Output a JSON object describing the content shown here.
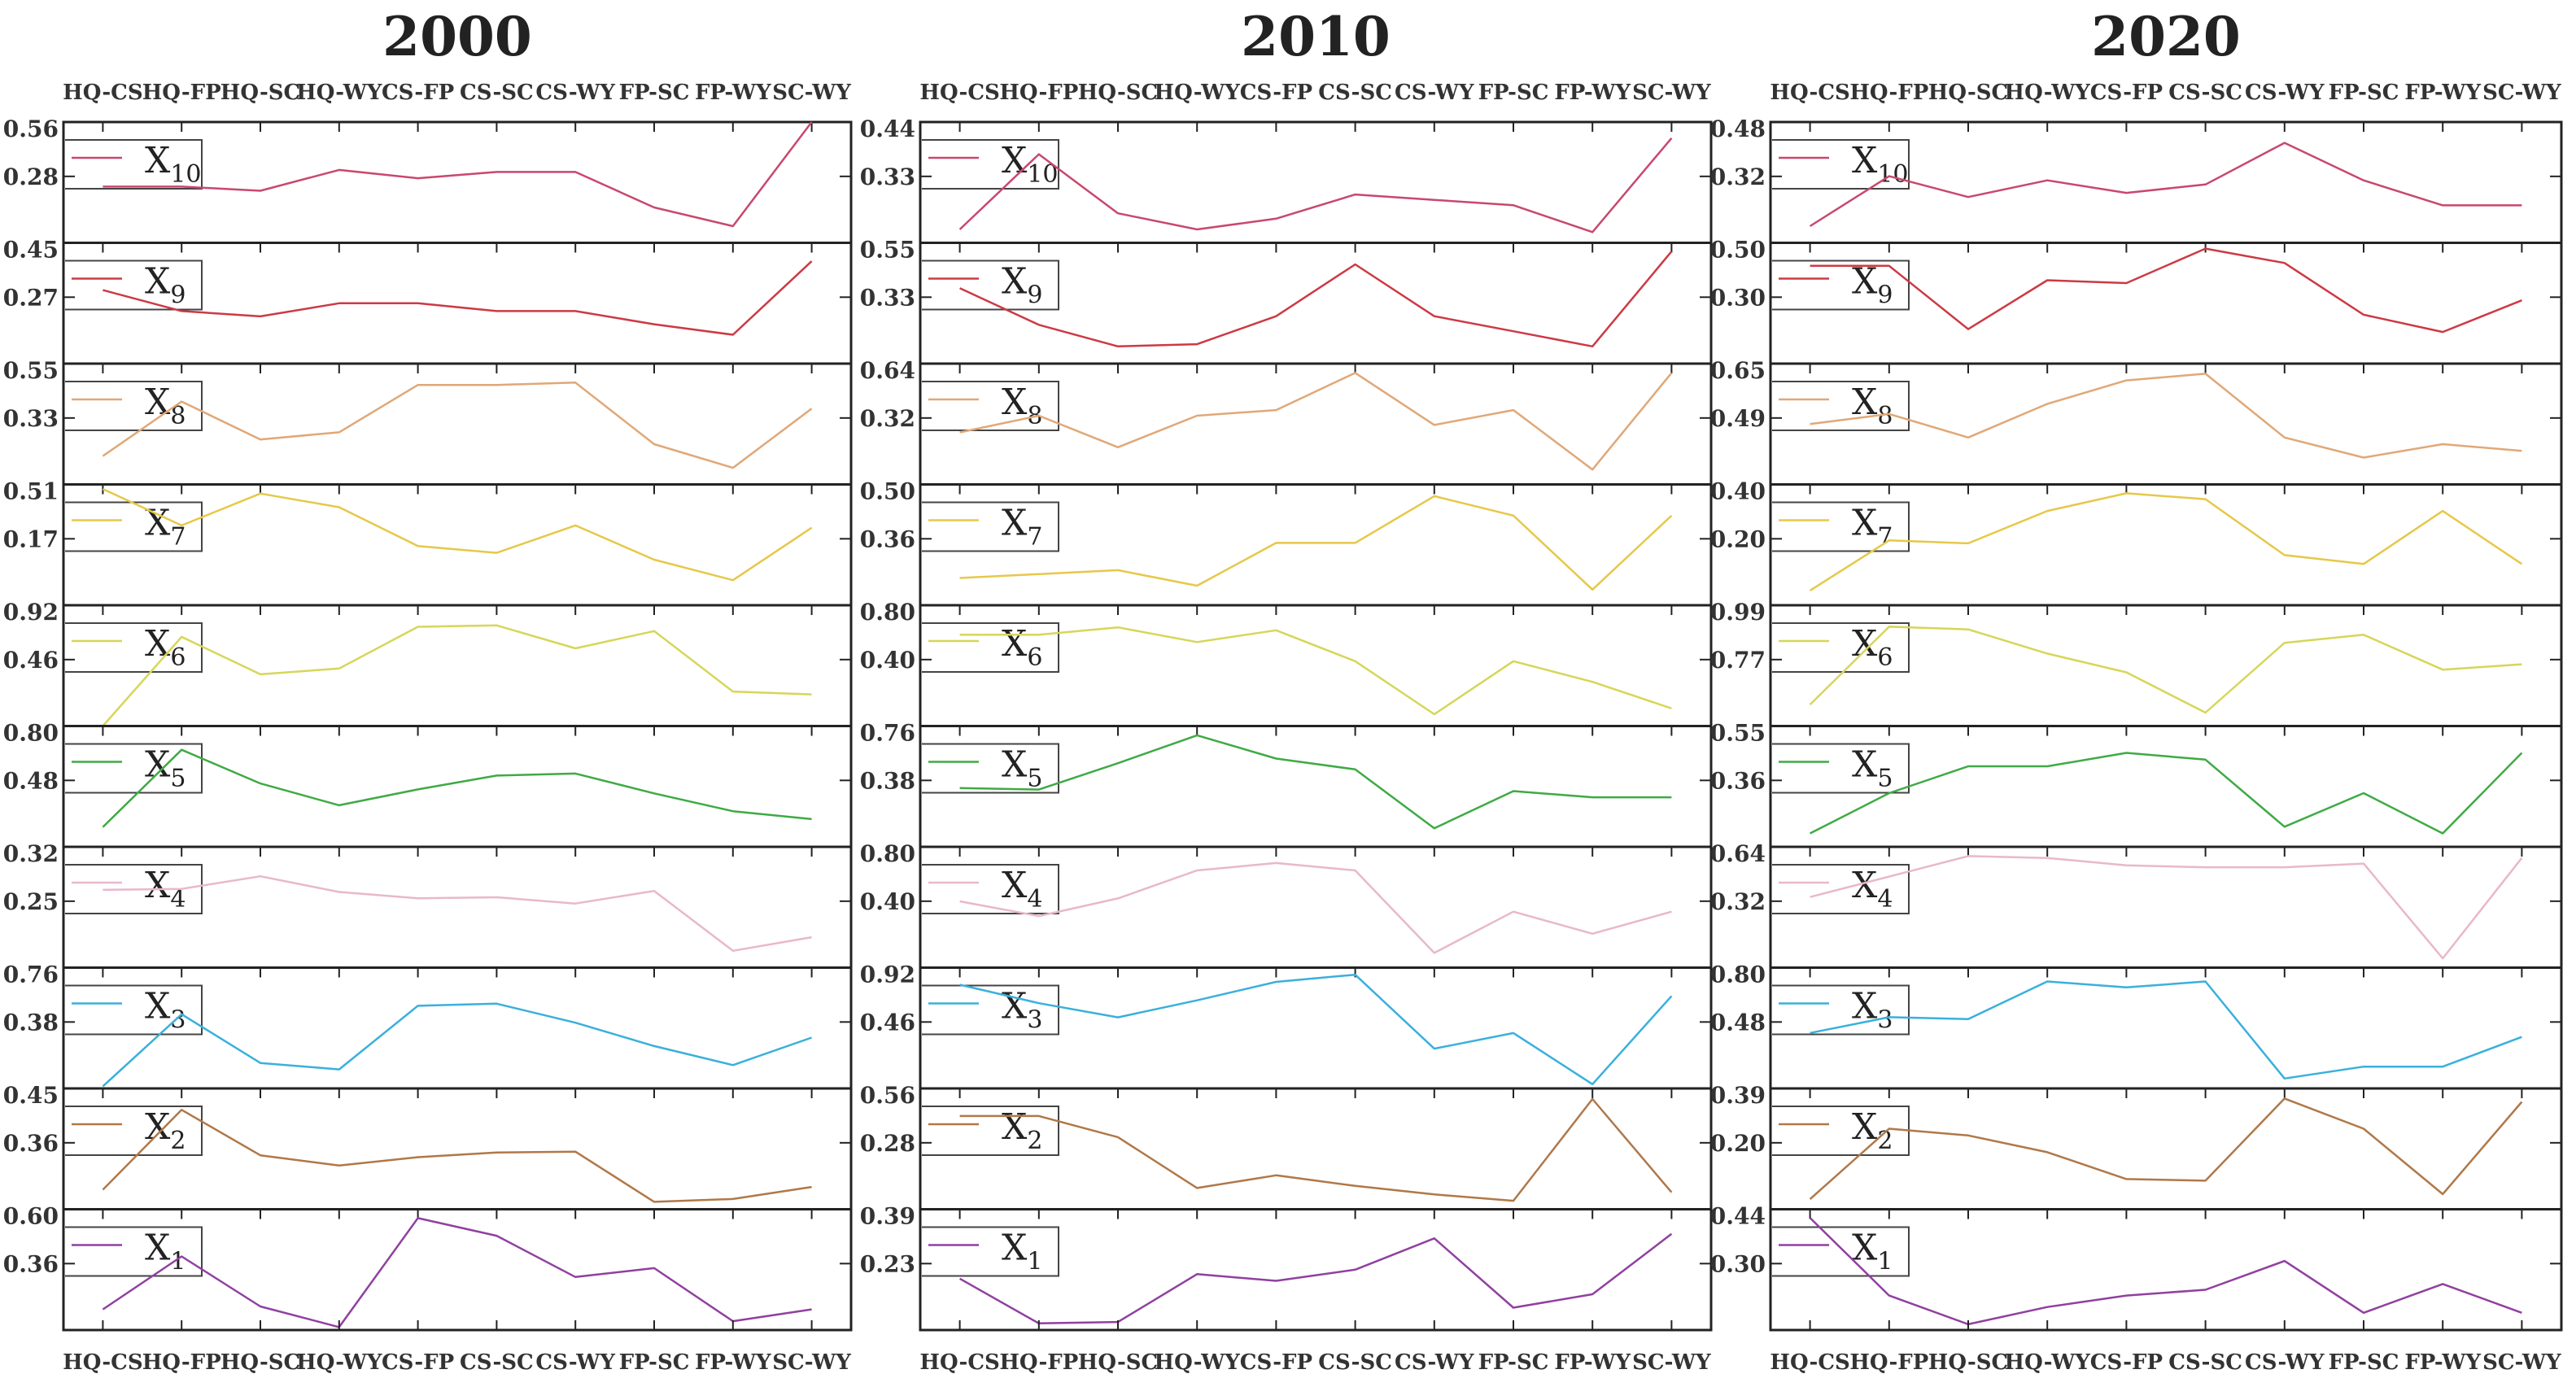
{
  "chart_data": {
    "type": "line",
    "categories": [
      "HQ-CS",
      "HQ-FP",
      "HQ-SC",
      "HQ-WY",
      "CS-FP",
      "CS-SC",
      "CS-WY",
      "FP-SC",
      "FP-WY",
      "SC-WY"
    ],
    "series_colors": {
      "X10": "#c8486e",
      "X9": "#cc3a44",
      "X8": "#e0a878",
      "X7": "#e6c84a",
      "X6": "#d6d65a",
      "X5": "#3faa45",
      "X4": "#e8b8cc",
      "X3": "#3ab0dc",
      "X2": "#b07848",
      "X1": "#9040a0"
    },
    "legend_labels": {
      "X10": {
        "main": "X",
        "sub": "10"
      },
      "X9": {
        "main": "X",
        "sub": "9"
      },
      "X8": {
        "main": "X",
        "sub": "8"
      },
      "X7": {
        "main": "X",
        "sub": "7"
      },
      "X6": {
        "main": "X",
        "sub": "6"
      },
      "X5": {
        "main": "X",
        "sub": "5"
      },
      "X4": {
        "main": "X",
        "sub": "4"
      },
      "X3": {
        "main": "X",
        "sub": "3"
      },
      "X2": {
        "main": "X",
        "sub": "2"
      },
      "X1": {
        "main": "X",
        "sub": "1"
      }
    },
    "panels": [
      {
        "title": "2000",
        "series": {
          "X10": {
            "ticks": [
              "0.56",
              "0.28"
            ],
            "ylim": [
              0.0,
              0.58
            ],
            "values": [
              0.27,
              0.27,
              0.25,
              0.35,
              0.31,
              0.34,
              0.34,
              0.17,
              0.08,
              0.58
            ]
          },
          "X9": {
            "ticks": [
              "0.45",
              "0.27"
            ],
            "ylim": [
              0.0,
              0.46
            ],
            "values": [
              0.28,
              0.2,
              0.18,
              0.23,
              0.23,
              0.2,
              0.2,
              0.15,
              0.11,
              0.39
            ]
          },
          "X8": {
            "ticks": [
              "0.55",
              "0.33"
            ],
            "ylim": [
              0.05,
              0.56
            ],
            "values": [
              0.17,
              0.4,
              0.24,
              0.27,
              0.47,
              0.47,
              0.48,
              0.22,
              0.12,
              0.37
            ]
          },
          "X7": {
            "ticks": [
              "0.51",
              "0.17"
            ],
            "ylim": [
              0.0,
              0.53
            ],
            "values": [
              0.51,
              0.35,
              0.49,
              0.43,
              0.26,
              0.23,
              0.35,
              0.2,
              0.11,
              0.34
            ]
          },
          "X6": {
            "ticks": [
              "0.92",
              "0.46"
            ],
            "ylim": [
              0.1,
              0.94
            ],
            "values": [
              0.1,
              0.72,
              0.46,
              0.5,
              0.79,
              0.8,
              0.64,
              0.76,
              0.34,
              0.32
            ]
          },
          "X5": {
            "ticks": [
              "0.80",
              "0.48"
            ],
            "ylim": [
              0.2,
              0.81
            ],
            "values": [
              0.3,
              0.69,
              0.52,
              0.41,
              0.49,
              0.56,
              0.57,
              0.47,
              0.38,
              0.34
            ]
          },
          "X4": {
            "ticks": [
              "0.32",
              "0.25"
            ],
            "ylim": [
              0.21,
              0.325
            ],
            "values": [
              0.284,
              0.285,
              0.297,
              0.282,
              0.276,
              0.277,
              0.271,
              0.283,
              0.226,
              0.239
            ]
          },
          "X3": {
            "ticks": [
              "0.76",
              "0.38"
            ],
            "ylim": [
              0.2,
              0.77
            ],
            "values": [
              0.21,
              0.55,
              0.32,
              0.29,
              0.59,
              0.6,
              0.51,
              0.4,
              0.31,
              0.44
            ]
          },
          "X2": {
            "ticks": [
              "0.45",
              "0.36"
            ],
            "ylim": [
              0.325,
              0.455
            ],
            "values": [
              0.346,
              0.432,
              0.383,
              0.372,
              0.381,
              0.386,
              0.387,
              0.333,
              0.336,
              0.349
            ]
          },
          "X1": {
            "ticks": [
              "0.60",
              "0.36"
            ],
            "ylim": [
              0.2,
              0.61
            ],
            "values": [
              0.27,
              0.45,
              0.28,
              0.21,
              0.58,
              0.52,
              0.38,
              0.41,
              0.23,
              0.27
            ]
          }
        }
      },
      {
        "title": "2010",
        "series": {
          "X10": {
            "ticks": [
              "0.44",
              "0.33"
            ],
            "ylim": [
              0.22,
              0.445
            ],
            "values": [
              0.245,
              0.385,
              0.275,
              0.245,
              0.265,
              0.31,
              0.3,
              0.29,
              0.24,
              0.415
            ]
          },
          "X9": {
            "ticks": [
              "0.55",
              "0.33"
            ],
            "ylim": [
              0.0,
              0.56
            ],
            "values": [
              0.35,
              0.18,
              0.08,
              0.09,
              0.22,
              0.46,
              0.22,
              0.15,
              0.08,
              0.52
            ]
          },
          "X8": {
            "ticks": [
              "0.64",
              "0.32"
            ],
            "ylim": [
              0.0,
              0.65
            ],
            "values": [
              0.28,
              0.37,
              0.2,
              0.37,
              0.4,
              0.6,
              0.32,
              0.4,
              0.08,
              0.6
            ]
          },
          "X7": {
            "ticks": [
              "0.50",
              "0.36"
            ],
            "ylim": [
              0.2,
              0.51
            ],
            "values": [
              0.27,
              0.28,
              0.29,
              0.25,
              0.36,
              0.36,
              0.48,
              0.43,
              0.24,
              0.43
            ]
          },
          "X6": {
            "ticks": [
              "0.80",
              "0.40"
            ],
            "ylim": [
              0.0,
              0.82
            ],
            "values": [
              0.62,
              0.62,
              0.67,
              0.57,
              0.65,
              0.44,
              0.08,
              0.44,
              0.3,
              0.12
            ]
          },
          "X5": {
            "ticks": [
              "0.76",
              "0.38"
            ],
            "ylim": [
              0.0,
              0.78
            ],
            "values": [
              0.38,
              0.37,
              0.54,
              0.72,
              0.57,
              0.5,
              0.12,
              0.36,
              0.32,
              0.32
            ]
          },
          "X4": {
            "ticks": [
              "0.80",
              "0.40"
            ],
            "ylim": [
              0.0,
              0.82
            ],
            "values": [
              0.45,
              0.35,
              0.47,
              0.66,
              0.71,
              0.66,
              0.1,
              0.38,
              0.23,
              0.38
            ]
          },
          "X3": {
            "ticks": [
              "0.92",
              "0.46"
            ],
            "ylim": [
              0.1,
              0.95
            ],
            "values": [
              0.83,
              0.7,
              0.6,
              0.72,
              0.85,
              0.9,
              0.38,
              0.49,
              0.13,
              0.75
            ]
          },
          "X2": {
            "ticks": [
              "0.56",
              "0.28"
            ],
            "ylim": [
              0.0,
              0.57
            ],
            "values": [
              0.44,
              0.44,
              0.34,
              0.1,
              0.16,
              0.11,
              0.07,
              0.04,
              0.52,
              0.08
            ]
          },
          "X1": {
            "ticks": [
              "0.39",
              "0.23"
            ],
            "ylim": [
              0.13,
              0.4
            ],
            "values": [
              0.245,
              0.145,
              0.148,
              0.255,
              0.24,
              0.265,
              0.335,
              0.18,
              0.21,
              0.345
            ]
          }
        }
      },
      {
        "title": "2020",
        "series": {
          "X10": {
            "ticks": [
              "0.48",
              "0.32"
            ],
            "ylim": [
              0.2,
              0.49
            ],
            "values": [
              0.24,
              0.36,
              0.31,
              0.35,
              0.32,
              0.34,
              0.44,
              0.35,
              0.29,
              0.29
            ]
          },
          "X9": {
            "ticks": [
              "0.50",
              "0.30"
            ],
            "ylim": [
              0.1,
              0.52
            ],
            "values": [
              0.44,
              0.44,
              0.22,
              0.39,
              0.38,
              0.5,
              0.45,
              0.27,
              0.21,
              0.32
            ]
          },
          "X8": {
            "ticks": [
              "0.65",
              "0.49"
            ],
            "ylim": [
              0.3,
              0.66
            ],
            "values": [
              0.48,
              0.51,
              0.44,
              0.54,
              0.61,
              0.63,
              0.44,
              0.38,
              0.42,
              0.4
            ]
          },
          "X7": {
            "ticks": [
              "0.40",
              "0.20"
            ],
            "ylim": [
              0.0,
              0.41
            ],
            "values": [
              0.05,
              0.22,
              0.21,
              0.32,
              0.38,
              0.36,
              0.17,
              0.14,
              0.32,
              0.14
            ]
          },
          "X6": {
            "ticks": [
              "0.99",
              "0.77"
            ],
            "ylim": [
              0.55,
              1.0
            ],
            "values": [
              0.63,
              0.92,
              0.91,
              0.82,
              0.75,
              0.6,
              0.86,
              0.89,
              0.76,
              0.78
            ]
          },
          "X5": {
            "ticks": [
              "0.55",
              "0.36"
            ],
            "ylim": [
              0.2,
              0.56
            ],
            "values": [
              0.24,
              0.36,
              0.44,
              0.44,
              0.48,
              0.46,
              0.26,
              0.36,
              0.24,
              0.48
            ]
          },
          "X4": {
            "ticks": [
              "0.64",
              "0.32"
            ],
            "ylim": [
              0.0,
              0.65
            ],
            "values": [
              0.38,
              0.49,
              0.6,
              0.59,
              0.55,
              0.54,
              0.54,
              0.56,
              0.05,
              0.59
            ]
          },
          "X3": {
            "ticks": [
              "0.80",
              "0.48"
            ],
            "ylim": [
              0.2,
              0.81
            ],
            "values": [
              0.48,
              0.56,
              0.55,
              0.74,
              0.71,
              0.74,
              0.25,
              0.31,
              0.31,
              0.46
            ]
          },
          "X2": {
            "ticks": [
              "0.39",
              "0.20"
            ],
            "ylim": [
              0.04,
              0.4
            ],
            "values": [
              0.07,
              0.28,
              0.26,
              0.21,
              0.13,
              0.125,
              0.37,
              0.28,
              0.085,
              0.36
            ]
          },
          "X1": {
            "ticks": [
              "0.44",
              "0.30"
            ],
            "ylim": [
              0.24,
              0.45
            ],
            "values": [
              0.435,
              0.3,
              0.25,
              0.28,
              0.3,
              0.31,
              0.36,
              0.27,
              0.32,
              0.27
            ]
          }
        }
      }
    ]
  }
}
